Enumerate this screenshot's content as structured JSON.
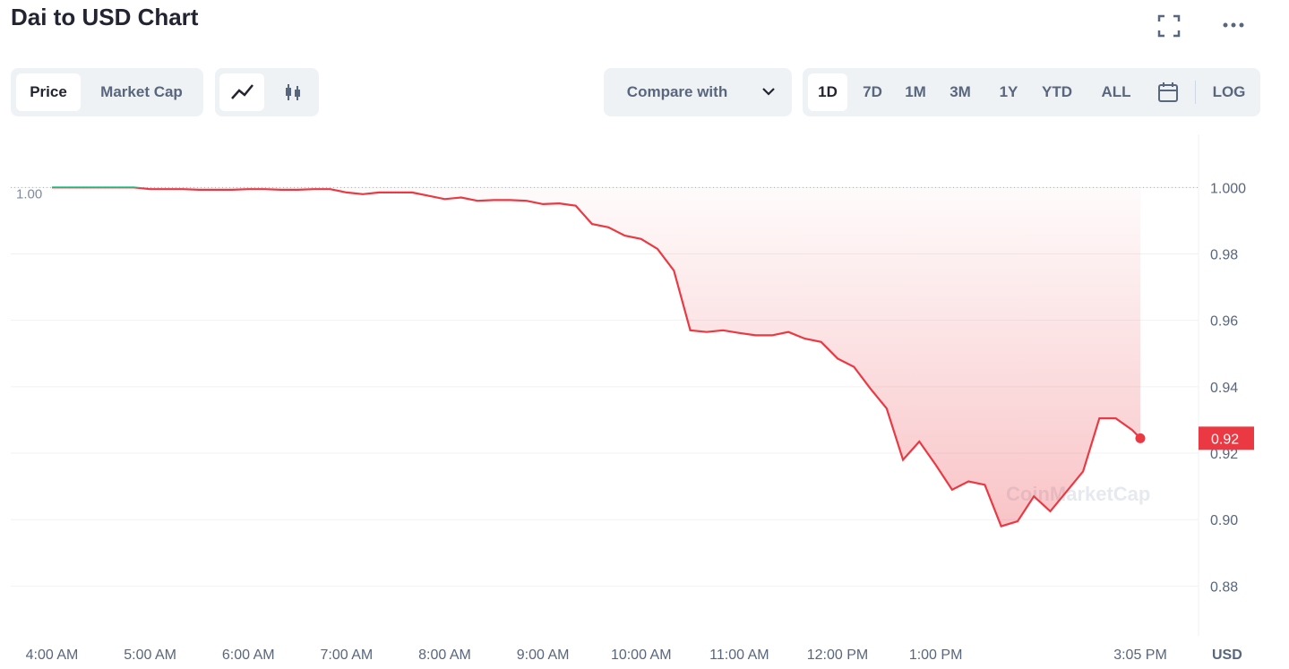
{
  "header": {
    "title": "Dai to USD Chart"
  },
  "toolbar": {
    "tabs": [
      "Price",
      "Market Cap"
    ],
    "compare": "Compare with",
    "ranges": [
      "1D",
      "7D",
      "1M",
      "3M",
      "1Y",
      "YTD",
      "ALL"
    ],
    "log": "LOG"
  },
  "chart_data": {
    "type": "line",
    "x": [
      "4:00 AM",
      "4:10 AM",
      "4:20 AM",
      "4:30 AM",
      "4:40 AM",
      "4:50 AM",
      "5:00 AM",
      "5:10 AM",
      "5:20 AM",
      "5:30 AM",
      "5:40 AM",
      "5:50 AM",
      "6:00 AM",
      "6:10 AM",
      "6:20 AM",
      "6:30 AM",
      "6:40 AM",
      "6:50 AM",
      "7:00 AM",
      "7:10 AM",
      "7:20 AM",
      "7:30 AM",
      "7:40 AM",
      "7:50 AM",
      "8:00 AM",
      "8:10 AM",
      "8:20 AM",
      "8:30 AM",
      "8:40 AM",
      "8:50 AM",
      "9:00 AM",
      "9:10 AM",
      "9:20 AM",
      "9:30 AM",
      "9:40 AM",
      "9:50 AM",
      "10:00 AM",
      "10:10 AM",
      "10:20 AM",
      "10:30 AM",
      "10:40 AM",
      "10:50 AM",
      "11:00 AM",
      "11:10 AM",
      "11:20 AM",
      "11:30 AM",
      "11:40 AM",
      "11:50 AM",
      "12:00 PM",
      "12:10 PM",
      "12:20 PM",
      "12:30 PM",
      "12:40 PM",
      "12:50 PM",
      "1:00 PM",
      "1:10 PM",
      "1:20 PM",
      "1:30 PM",
      "1:40 PM",
      "1:50 PM",
      "2:00 PM",
      "2:10 PM",
      "2:20 PM",
      "2:30 PM",
      "2:40 PM",
      "2:50 PM",
      "3:00 PM",
      "3:05 PM"
    ],
    "values": [
      1.0,
      1.0,
      1.0,
      1.0,
      1.0,
      1.0,
      0.9995,
      0.9995,
      0.9995,
      0.9993,
      0.9993,
      0.9993,
      0.9995,
      0.9995,
      0.9993,
      0.9993,
      0.9995,
      0.9995,
      0.9985,
      0.998,
      0.9985,
      0.9985,
      0.9985,
      0.9975,
      0.9965,
      0.997,
      0.996,
      0.9962,
      0.9962,
      0.996,
      0.995,
      0.9952,
      0.9945,
      0.989,
      0.988,
      0.9855,
      0.9845,
      0.9815,
      0.975,
      0.957,
      0.9565,
      0.957,
      0.9562,
      0.9555,
      0.9555,
      0.9565,
      0.9545,
      0.9535,
      0.9485,
      0.946,
      0.9395,
      0.9335,
      0.918,
      0.9235,
      0.9165,
      0.909,
      0.9115,
      0.9105,
      0.898,
      0.8995,
      0.907,
      0.9025,
      0.9085,
      0.9145,
      0.9305,
      0.9305,
      0.927,
      0.9245
    ],
    "last_label": "0.92",
    "baseline": {
      "value": 1,
      "label": "1.00"
    },
    "colors": {
      "up": "#16c784",
      "down": "#ea3943"
    },
    "ylim": [
      0.865,
      1.016
    ],
    "yticks": [
      {
        "value": 1,
        "label": "1.000"
      },
      0.98,
      0.96,
      0.94,
      0.92,
      {
        "value": 0.9,
        "label": "0.90"
      },
      0.88
    ],
    "xlim": [
      "4:00 AM",
      "3:05 PM"
    ],
    "xticks": [
      "4:00 AM",
      "5:00 AM",
      "6:00 AM",
      "7:00 AM",
      "8:00 AM",
      "9:00 AM",
      "10:00 AM",
      "11:00 AM",
      "12:00 PM",
      "1:00 PM",
      "3:05 PM"
    ],
    "y_unit": "USD",
    "watermark": "CoinMarketCap",
    "grid": true
  }
}
